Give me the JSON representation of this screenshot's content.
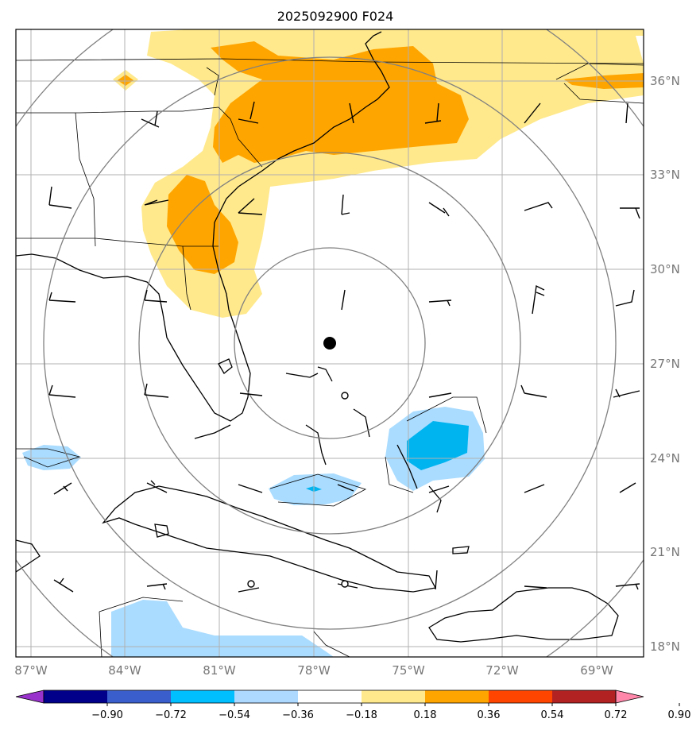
{
  "title": "2025092900 F024",
  "colors": {
    "pos_light": "#ffe98c",
    "pos_mid": "#ffa500",
    "neg_light": "#aadcff",
    "neg_mid": "#00b4f0",
    "grid": "#b0b0b0",
    "range_ring": "#808080",
    "coast": "#000000",
    "storm_marker": "#000000"
  },
  "lat_labels": [
    "36°N",
    "33°N",
    "30°N",
    "27°N",
    "24°N",
    "21°N",
    "18°N"
  ],
  "lon_labels": [
    "87°W",
    "84°W",
    "81°W",
    "78°W",
    "75°W",
    "72°W",
    "69°W"
  ],
  "colorbar": {
    "ticks": [
      "−0.90",
      "−0.72",
      "−0.54",
      "−0.36",
      "−0.18",
      "0.18",
      "0.36",
      "0.54",
      "0.72",
      "0.90"
    ],
    "colors": [
      "#9932cc",
      "#00008b",
      "#3a5fcd",
      "#00bfff",
      "#add8ff",
      "#ffffff",
      "#ffe98c",
      "#ffa500",
      "#ff4500",
      "#b22222",
      "#ff88aa"
    ]
  }
}
